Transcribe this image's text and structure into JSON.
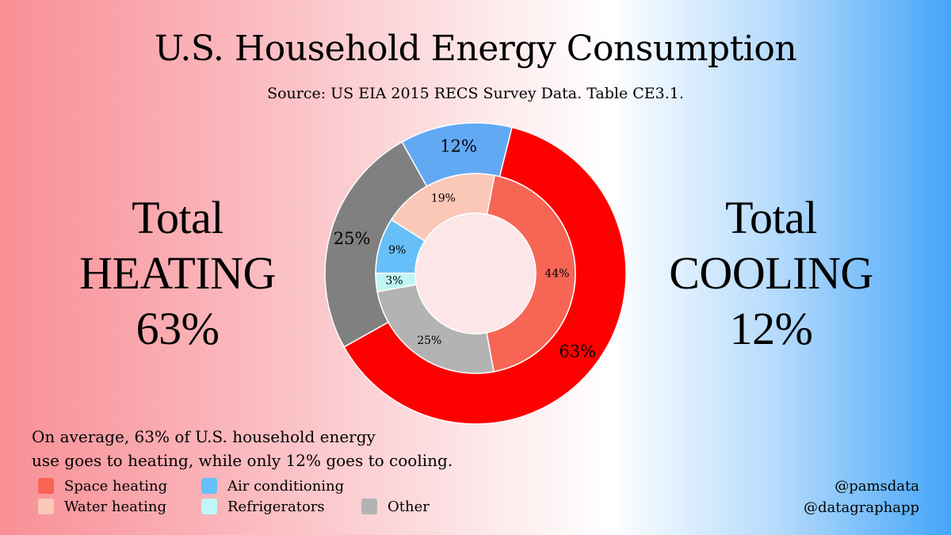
{
  "header": {
    "title": "U.S. Household Energy Consumption",
    "subtitle": "Source: US EIA 2015 RECS Survey Data. Table CE3.1."
  },
  "left_panel": {
    "line1": "Total",
    "line2": "HEATING",
    "line3": "63%"
  },
  "right_panel": {
    "line1": "Total",
    "line2": "COOLING",
    "line3": "12%"
  },
  "note": {
    "line1": "On average, 63% of U.S. household energy",
    "line2": "use goes to heating, while only 12% goes to cooling."
  },
  "credits": {
    "line1": "@pamsdata",
    "line2": "@datagraphapp"
  },
  "colors": {
    "heating_total": "#fd0000",
    "cooling_total": "#62a9f4",
    "other_total": "#808080",
    "space_heating": "#f76555",
    "water_heating": "#fbc8b8",
    "air_conditioning": "#66bff8",
    "refrigerators": "#bff6f6",
    "other": "#b3b3b3",
    "center": "#fde6e8"
  },
  "chart_data": {
    "type": "pie",
    "subtype": "nested-donut",
    "title": "U.S. Household Energy Consumption",
    "outer_ring": [
      {
        "name": "Heating",
        "value": 63,
        "label": "63%",
        "color_key": "heating_total"
      },
      {
        "name": "Other",
        "value": 25,
        "label": "25%",
        "color_key": "other_total"
      },
      {
        "name": "Cooling",
        "value": 12,
        "label": "12%",
        "color_key": "cooling_total"
      }
    ],
    "inner_ring": [
      {
        "name": "Space heating",
        "value": 44,
        "label": "44%",
        "color_key": "space_heating"
      },
      {
        "name": "Other",
        "value": 25,
        "label": "25%",
        "color_key": "other"
      },
      {
        "name": "Refrigerators",
        "value": 3,
        "label": "3%",
        "color_key": "refrigerators"
      },
      {
        "name": "Air conditioning",
        "value": 9,
        "label": "9%",
        "color_key": "air_conditioning"
      },
      {
        "name": "Water heating",
        "value": 19,
        "label": "19%",
        "color_key": "water_heating"
      }
    ],
    "legend": [
      {
        "label": "Space heating",
        "color_key": "space_heating"
      },
      {
        "label": "Water heating",
        "color_key": "water_heating"
      },
      {
        "label": "Air conditioning",
        "color_key": "air_conditioning"
      },
      {
        "label": "Refrigerators",
        "color_key": "refrigerators"
      },
      {
        "label": "Other",
        "color_key": "other"
      }
    ],
    "legend_position": "bottom-left"
  }
}
